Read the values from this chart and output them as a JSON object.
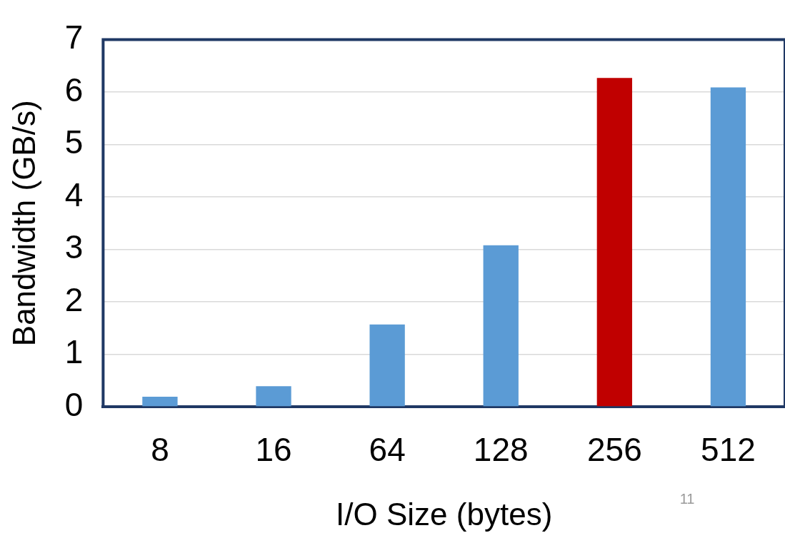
{
  "chart_data": {
    "type": "bar",
    "xlabel": "I/O Size (bytes)",
    "ylabel": "Bandwidth (GB/s)",
    "categories": [
      "8",
      "16",
      "64",
      "128",
      "256",
      "512"
    ],
    "values": [
      0.19,
      0.39,
      1.57,
      3.08,
      6.27,
      6.09
    ],
    "colors": [
      "#5b9bd5",
      "#5b9bd5",
      "#5b9bd5",
      "#5b9bd5",
      "#c00000",
      "#5b9bd5"
    ],
    "ylim": [
      0,
      7
    ],
    "yticks": [
      0,
      1,
      2,
      3,
      4,
      5,
      6,
      7
    ],
    "grid": "y",
    "legend": false,
    "annotations": [
      "11"
    ]
  }
}
